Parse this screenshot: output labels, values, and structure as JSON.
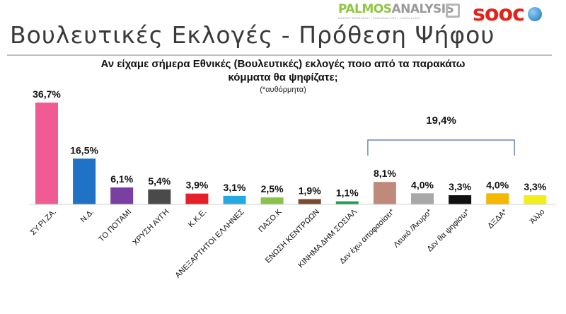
{
  "header": {
    "title": "Βουλευτικές Εκλογές - Πρόθεση Ψήφου",
    "question_line1": "Αν είχαμε σήμερα Εθνικές (Βουλευτικές) εκλογές ποιο από τα παρακάτω",
    "question_line2": "κόμματα θα ψηφίζατε;",
    "question_note": "(*αυθόρμητα)"
  },
  "logos": {
    "palmos_part1": "PALMOS",
    "palmos_part2": "ANALYSIS",
    "palmos_tagline": "MARKET RESEARCH | DATA ANALYSIS | CONSULTING",
    "sooc": "sooc"
  },
  "chart_data": {
    "type": "bar",
    "title": "",
    "xlabel": "",
    "ylabel": "",
    "ylim": [
      0,
      38
    ],
    "grid": false,
    "legend": "none",
    "categories": [
      "ΣΥ.ΡΙ.ΖΑ.",
      "Ν.Δ.",
      "ΤΟ ΠΟΤΑΜΙ",
      "ΧΡΥΣΗ ΑΥΓΗ",
      "Κ.Κ.Ε.",
      "ΑΝΕΞΑΡΤΗΤΟΙ ΕΛΛΗΝΕΣ",
      "ΠΑΣΟ.Κ",
      "ΕΝΩΣΗ ΚΕΝΤΡΩΩΝ",
      "ΚΙΝΗΜΑ ΔΗΜ ΣΟΣΙΑΛ",
      "Δεν έχω αποφασίσει*",
      "Λευκό /Άκυρο*",
      "Δεν θα ψηφίσω*",
      "ΔΞΔΑ*",
      "Άλλο"
    ],
    "values": [
      36.7,
      16.5,
      6.1,
      5.4,
      3.9,
      3.1,
      2.5,
      1.9,
      1.1,
      8.1,
      4.0,
      3.3,
      4.0,
      3.3
    ],
    "value_labels": [
      "36,7%",
      "16,5%",
      "6,1%",
      "5,4%",
      "3,9%",
      "3,1%",
      "2,5%",
      "1,9%",
      "1,1%",
      "8,1%",
      "4,0%",
      "3,3%",
      "4,0%",
      "3,3%"
    ],
    "colors": [
      "#f15b93",
      "#1f72c6",
      "#7b3fa3",
      "#4a4a4a",
      "#e4202a",
      "#25a9e2",
      "#8bc34a",
      "#7a4a2e",
      "#1f9d55",
      "#c08a7a",
      "#a8a8a8",
      "#111111",
      "#f5b800",
      "#f2ee1d"
    ],
    "annotation": {
      "label": "19,4%",
      "from_index": 9,
      "to_index": 12
    }
  }
}
